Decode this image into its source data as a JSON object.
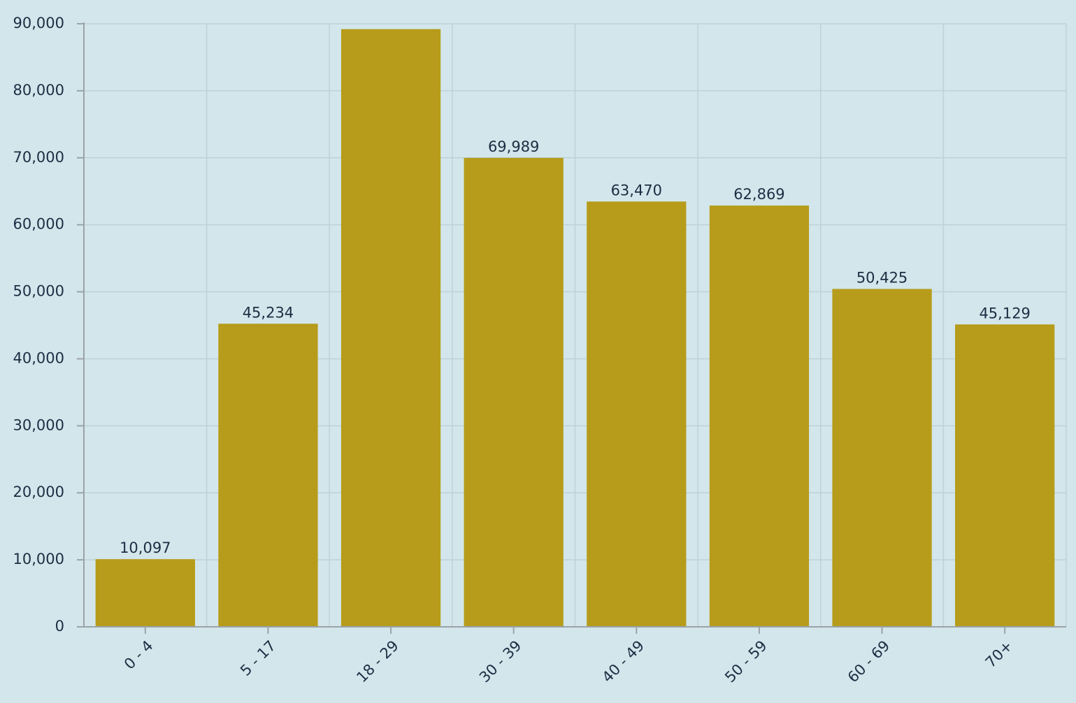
{
  "chart_data": {
    "type": "bar",
    "categories": [
      "0 - 4",
      "5 - 17",
      "18 - 29",
      "30 - 39",
      "40 - 49",
      "50 - 59",
      "60 - 69",
      "70+"
    ],
    "values": [
      10097,
      45234,
      89200,
      69989,
      63470,
      62869,
      50425,
      45129
    ],
    "value_labels": [
      "10,097",
      "45,234",
      null,
      "69,989",
      "63,470",
      "62,869",
      "50,425",
      "45,129"
    ],
    "color": "#b69c1a",
    "ylim": [
      0,
      90000
    ],
    "yticks": [
      0,
      {
        "value": 10000,
        "label": "10,000"
      },
      {
        "value": 20000,
        "label": "20,000"
      },
      {
        "value": 30000,
        "label": "30,000"
      },
      {
        "value": 40000,
        "label": "40,000"
      },
      {
        "value": 50000,
        "label": "50,000"
      },
      {
        "value": 60000,
        "label": "60,000"
      },
      {
        "value": 70000,
        "label": "70,000"
      },
      {
        "value": 80000,
        "label": "80,000"
      },
      {
        "value": 90000,
        "label": "90,000"
      }
    ],
    "grid": true
  }
}
